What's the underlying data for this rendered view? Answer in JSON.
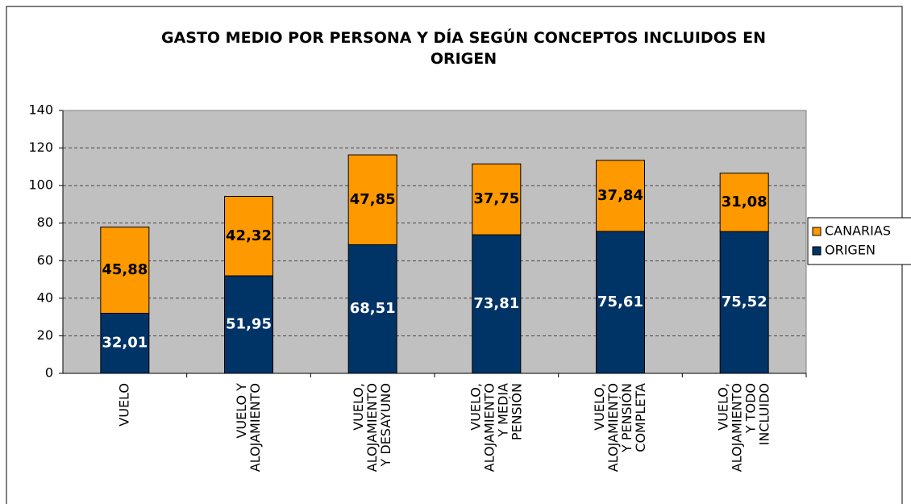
{
  "chart_data": {
    "type": "stacked_bar",
    "title": "GASTO MEDIO POR PERSONA Y DÍA SEGÚN CONCEPTOS INCLUIDOS EN\nORIGEN",
    "categories": [
      "VUELO",
      "VUELO Y\nALOJAMIENTO",
      "VUELO,\nALOJAMIENTO\nY DESAYUNO",
      "VUELO,\nALOJAMIENTO\nY MEDIA\nPENSIÓN",
      "VUELO,\nALOJAMIENTO\nY PENSIÓN\nCOMPLETA",
      "VUELO,\nALOJAMIENTO\nY TODO\nINCLUIDO"
    ],
    "series": [
      {
        "name": "ORIGEN",
        "color": "#003366",
        "label_color": "#ffffff",
        "values": [
          32.01,
          51.95,
          68.51,
          73.81,
          75.61,
          75.52
        ],
        "value_labels": [
          "32,01",
          "51,95",
          "68,51",
          "73,81",
          "75,61",
          "75,52"
        ]
      },
      {
        "name": "CANARIAS",
        "color": "#ff9900",
        "label_color": "#000000",
        "values": [
          45.88,
          42.32,
          47.85,
          37.75,
          37.84,
          31.08
        ],
        "value_labels": [
          "45,88",
          "42,32",
          "47,85",
          "37,75",
          "37,84",
          "31,08"
        ]
      }
    ],
    "ylim": [
      0,
      140
    ],
    "yticks": [
      0,
      20,
      40,
      60,
      80,
      100,
      120,
      140
    ],
    "grid": true,
    "legend": "right"
  }
}
